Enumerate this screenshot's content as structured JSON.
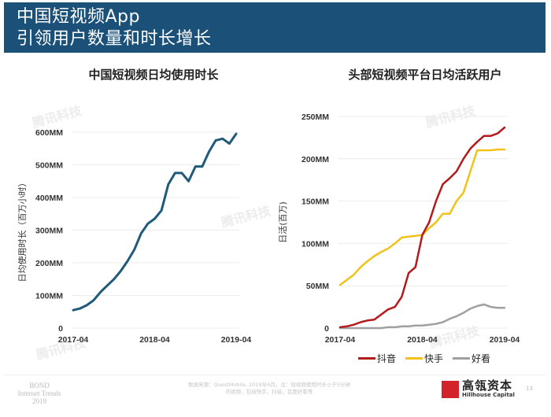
{
  "header": {
    "title_line1": "中国短视频App",
    "title_line2": "引领用户数量和时长增长"
  },
  "watermark": "腾讯科技",
  "chart_data": [
    {
      "type": "line",
      "title": "中国短视频日均使用时长",
      "xlabel": "",
      "ylabel": "日均使用时长（百万小时）",
      "ylim": [
        0,
        600
      ],
      "yticks": [
        0,
        100,
        200,
        300,
        400,
        500,
        600
      ],
      "ytick_labels": [
        "0",
        "100MM",
        "200MM",
        "300MM",
        "400MM",
        "500MM",
        "600MM"
      ],
      "xtick_labels": [
        "2017-04",
        "2018-04",
        "2019-04"
      ],
      "grid": true,
      "legend": "none",
      "color": "#1f5a7a",
      "x": [
        "2017-04",
        "2017-05",
        "2017-06",
        "2017-07",
        "2017-08",
        "2017-09",
        "2017-10",
        "2017-11",
        "2017-12",
        "2018-01",
        "2018-02",
        "2018-03",
        "2018-04",
        "2018-05",
        "2018-06",
        "2018-07",
        "2018-08",
        "2018-09",
        "2018-10",
        "2018-11",
        "2018-12",
        "2019-01",
        "2019-02",
        "2019-03",
        "2019-04"
      ],
      "series": [
        {
          "name": "日均使用时长",
          "values": [
            55,
            60,
            70,
            85,
            110,
            130,
            150,
            175,
            205,
            240,
            290,
            320,
            335,
            360,
            440,
            475,
            475,
            450,
            495,
            495,
            540,
            575,
            580,
            565,
            595
          ]
        }
      ]
    },
    {
      "type": "line",
      "title": "头部短视频平台日均活跃用户",
      "xlabel": "",
      "ylabel": "日活(百万)",
      "ylim": [
        0,
        250
      ],
      "yticks": [
        0,
        50,
        100,
        150,
        200,
        250
      ],
      "ytick_labels": [
        "0",
        "50MM",
        "100MM",
        "150MM",
        "200MM",
        "250MM"
      ],
      "xtick_labels": [
        "2017-04",
        "2018-04",
        "2019-04"
      ],
      "grid": true,
      "legend": "bottom",
      "x": [
        "2017-04",
        "2017-05",
        "2017-06",
        "2017-07",
        "2017-08",
        "2017-09",
        "2017-10",
        "2017-11",
        "2017-12",
        "2018-01",
        "2018-02",
        "2018-03",
        "2018-04",
        "2018-05",
        "2018-06",
        "2018-07",
        "2018-08",
        "2018-09",
        "2018-10",
        "2018-11",
        "2018-12",
        "2019-01",
        "2019-02",
        "2019-03",
        "2019-04"
      ],
      "series": [
        {
          "name": "抖音",
          "color": "#b31b1b",
          "values": [
            1,
            2,
            4,
            7,
            9,
            10,
            16,
            22,
            25,
            37,
            65,
            72,
            110,
            125,
            150,
            170,
            177,
            185,
            200,
            212,
            220,
            227,
            227,
            230,
            237
          ]
        },
        {
          "name": "快手",
          "color": "#f2c21b",
          "values": [
            51,
            57,
            63,
            72,
            79,
            85,
            90,
            94,
            100,
            107,
            108,
            109,
            110,
            118,
            125,
            135,
            135,
            150,
            160,
            185,
            210,
            210,
            210,
            211,
            211
          ]
        },
        {
          "name": "好看",
          "color": "#a0a0a0",
          "values": [
            0,
            0,
            0,
            0,
            0,
            0,
            0,
            1,
            1,
            2,
            2,
            3,
            3,
            4,
            5,
            7,
            11,
            14,
            18,
            23,
            26,
            28,
            25,
            24,
            24
          ]
        }
      ]
    }
  ],
  "footer": {
    "bond_line1": "BOND",
    "bond_line2": "Internet Trends",
    "bond_line3": "2019",
    "source_line1": "数据来源：QuestMobile, 2019年4月。注：短视频使用时长小于5分钟",
    "source_line2": "的视频，包括快手，抖音，百度好看等",
    "logo_cn": "高瓴资本",
    "logo_en": "Hillhouse Capital",
    "logo_color": "#d2232a",
    "page_number": "13"
  }
}
